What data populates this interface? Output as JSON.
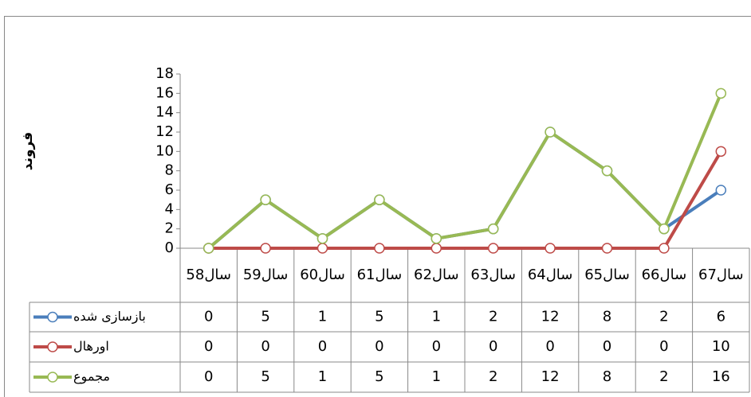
{
  "chart_data": {
    "type": "line",
    "y_label": "فروند",
    "categories": [
      "سال58",
      "سال59",
      "سال60",
      "سال61",
      "سال62",
      "سال63",
      "سال64",
      "سال65",
      "سال66",
      "سال67"
    ],
    "series": [
      {
        "name": "بازسازی شده",
        "color": "#4a7ebb",
        "values": [
          0,
          5,
          1,
          5,
          1,
          2,
          12,
          8,
          2,
          6
        ]
      },
      {
        "name": "اورهال",
        "color": "#be4b48",
        "values": [
          0,
          0,
          0,
          0,
          0,
          0,
          0,
          0,
          0,
          10
        ]
      },
      {
        "name": "مجموع",
        "color": "#98b954",
        "values": [
          0,
          5,
          1,
          5,
          1,
          2,
          12,
          8,
          2,
          16
        ]
      }
    ],
    "ylim": [
      0,
      18
    ],
    "yticks": [
      0,
      2,
      4,
      6,
      8,
      10,
      12,
      14,
      16,
      18
    ],
    "data_table": true
  }
}
